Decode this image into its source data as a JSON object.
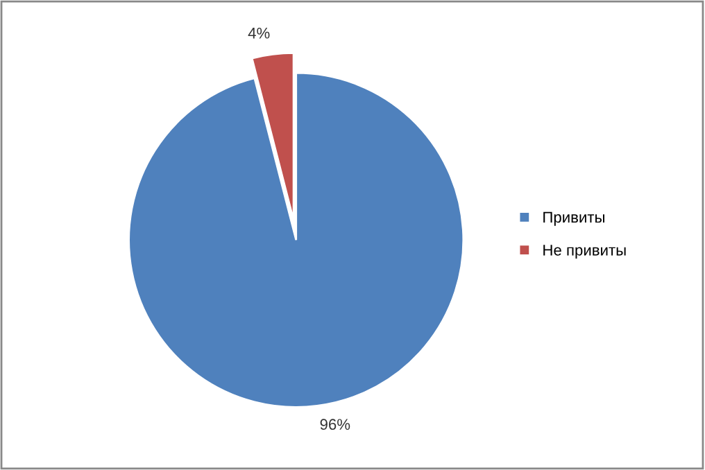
{
  "chart_data": {
    "type": "pie",
    "categories": [
      "Привиты",
      "Не привиты"
    ],
    "values": [
      96,
      4
    ],
    "colors": [
      "#4f81bd",
      "#c0504d"
    ],
    "value_labels": [
      "96%",
      "4%"
    ],
    "legend": "right"
  }
}
